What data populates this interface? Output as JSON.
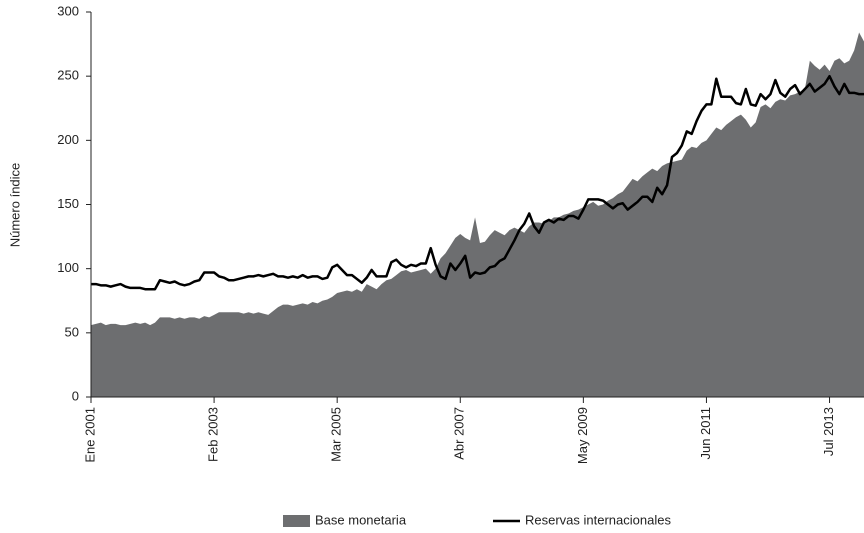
{
  "chart_data": {
    "type": "line",
    "y_label": "Número índice",
    "categories": [
      "Ene 2001",
      null,
      null,
      null,
      null,
      null,
      null,
      null,
      null,
      null,
      null,
      null,
      null,
      null,
      null,
      null,
      null,
      null,
      null,
      null,
      null,
      null,
      null,
      null,
      null,
      "Feb 2003",
      null,
      null,
      null,
      null,
      null,
      null,
      null,
      null,
      null,
      null,
      null,
      null,
      null,
      null,
      null,
      null,
      null,
      null,
      null,
      null,
      null,
      null,
      null,
      null,
      "Mar 2005",
      null,
      null,
      null,
      null,
      null,
      null,
      null,
      null,
      null,
      null,
      null,
      null,
      null,
      null,
      null,
      null,
      null,
      null,
      null,
      null,
      null,
      null,
      null,
      null,
      "Abr 2007",
      null,
      null,
      null,
      null,
      null,
      null,
      null,
      null,
      null,
      null,
      null,
      null,
      null,
      null,
      null,
      null,
      null,
      null,
      null,
      null,
      null,
      null,
      null,
      null,
      "May 2009",
      null,
      null,
      null,
      null,
      null,
      null,
      null,
      null,
      null,
      null,
      null,
      null,
      null,
      null,
      null,
      null,
      null,
      null,
      null,
      null,
      null,
      null,
      null,
      null,
      "Jun 2011",
      null,
      null,
      null,
      null,
      null,
      null,
      null,
      null,
      null,
      null,
      null,
      null,
      null,
      null,
      null,
      null,
      null,
      null,
      null,
      null,
      null,
      null,
      null,
      null,
      "Jul 2013",
      null,
      null,
      null,
      null,
      null,
      null,
      null
    ],
    "series": [
      {
        "name": "Base monetaria",
        "type": "area",
        "color": "#6d6e70",
        "values": [
          56,
          57,
          58,
          56,
          57,
          57,
          56,
          56,
          57,
          58,
          57,
          58,
          56,
          58,
          62,
          62,
          62,
          61,
          62,
          61,
          62,
          62,
          61,
          63,
          62,
          64,
          66,
          66,
          66,
          66,
          66,
          65,
          66,
          65,
          66,
          65,
          64,
          67,
          70,
          72,
          72,
          71,
          72,
          73,
          72,
          74,
          73,
          75,
          76,
          78,
          81,
          82,
          83,
          82,
          84,
          82,
          88,
          86,
          84,
          88,
          91,
          92,
          95,
          98,
          99,
          97,
          98,
          99,
          100,
          96,
          100,
          108,
          112,
          118,
          124,
          127,
          124,
          122,
          140,
          120,
          121,
          126,
          130,
          128,
          126,
          130,
          132,
          130,
          128,
          133,
          136,
          136,
          135,
          137,
          140,
          140,
          142,
          143,
          145,
          146,
          148,
          150,
          152,
          149,
          150,
          153,
          155,
          158,
          160,
          165,
          170,
          168,
          172,
          175,
          178,
          176,
          180,
          182,
          183,
          184,
          185,
          192,
          195,
          194,
          198,
          200,
          205,
          210,
          208,
          212,
          215,
          218,
          220,
          216,
          210,
          214,
          226,
          228,
          225,
          230,
          232,
          231,
          235,
          236,
          238,
          240,
          262,
          258,
          255,
          259,
          254,
          262,
          264,
          260,
          262,
          270,
          284,
          277
        ]
      },
      {
        "name": "Reservas internacionales",
        "type": "line",
        "color": "#000000",
        "values": [
          88,
          88,
          87,
          87,
          86,
          87,
          88,
          86,
          85,
          85,
          85,
          84,
          84,
          84,
          91,
          90,
          89,
          90,
          88,
          87,
          88,
          90,
          91,
          97,
          97,
          97,
          94,
          93,
          91,
          91,
          92,
          93,
          94,
          94,
          95,
          94,
          95,
          96,
          94,
          94,
          93,
          94,
          93,
          95,
          93,
          94,
          94,
          92,
          93,
          101,
          103,
          99,
          95,
          95,
          92,
          89,
          93,
          99,
          94,
          94,
          94,
          105,
          107,
          103,
          101,
          103,
          102,
          104,
          104,
          116,
          103,
          94,
          92,
          104,
          99,
          104,
          110,
          93,
          97,
          96,
          97,
          101,
          102,
          106,
          108,
          115,
          122,
          130,
          135,
          143,
          133,
          128,
          136,
          138,
          136,
          139,
          138,
          141,
          141,
          139,
          146,
          154,
          154,
          154,
          153,
          150,
          147,
          150,
          151,
          146,
          149,
          152,
          156,
          156,
          152,
          163,
          158,
          165,
          187,
          190,
          196,
          207,
          205,
          215,
          223,
          228,
          228,
          248,
          234,
          234,
          234,
          229,
          228,
          240,
          228,
          227,
          236,
          232,
          236,
          247,
          237,
          234,
          240,
          243,
          236,
          240,
          244,
          238,
          241,
          244,
          250,
          242,
          236,
          244,
          237,
          237,
          236,
          236
        ]
      }
    ],
    "ylim": [
      0,
      300
    ],
    "yticks": [
      0,
      50,
      100,
      150,
      200,
      250,
      300
    ]
  }
}
